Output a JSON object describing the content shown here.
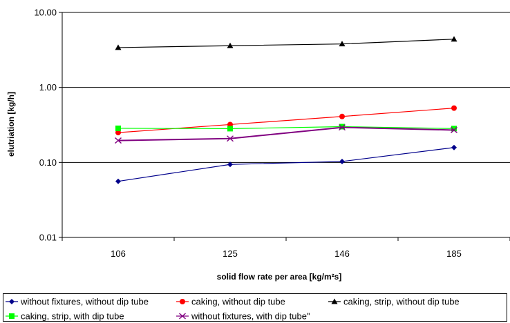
{
  "chart_data": {
    "type": "line",
    "categories": [
      "106",
      "125",
      "146",
      "185"
    ],
    "xlabel": "solid flow rate per area [kg/m²s]",
    "ylabel": "elutriation [kg/h]",
    "yscale": "log",
    "ylim": [
      0.01,
      10
    ],
    "yticks": [
      "0.01",
      "0.10",
      "1.00",
      "10.00"
    ],
    "grid": "horizontal",
    "legend_position": "bottom",
    "series": [
      {
        "name": "without fixtures, without dip tube",
        "color": "#00008B",
        "marker": "diamond",
        "values": [
          0.056,
          0.094,
          0.103,
          0.158
        ]
      },
      {
        "name": "caking, without dip tube",
        "color": "#FF0000",
        "marker": "circle",
        "values": [
          0.25,
          0.32,
          0.41,
          0.53
        ]
      },
      {
        "name": "caking, strip,  without dip tube",
        "color": "#000000",
        "marker": "triangle",
        "values": [
          3.4,
          3.6,
          3.8,
          4.4
        ]
      },
      {
        "name": "caking, strip, with dip tube",
        "color": "#00FF00",
        "marker": "square",
        "values": [
          0.285,
          0.282,
          0.3,
          0.283
        ]
      },
      {
        "name": "without fixtures, with dip tube\"",
        "color": "#800080",
        "marker": "x",
        "values": [
          0.196,
          0.208,
          0.293,
          0.27
        ]
      }
    ]
  }
}
